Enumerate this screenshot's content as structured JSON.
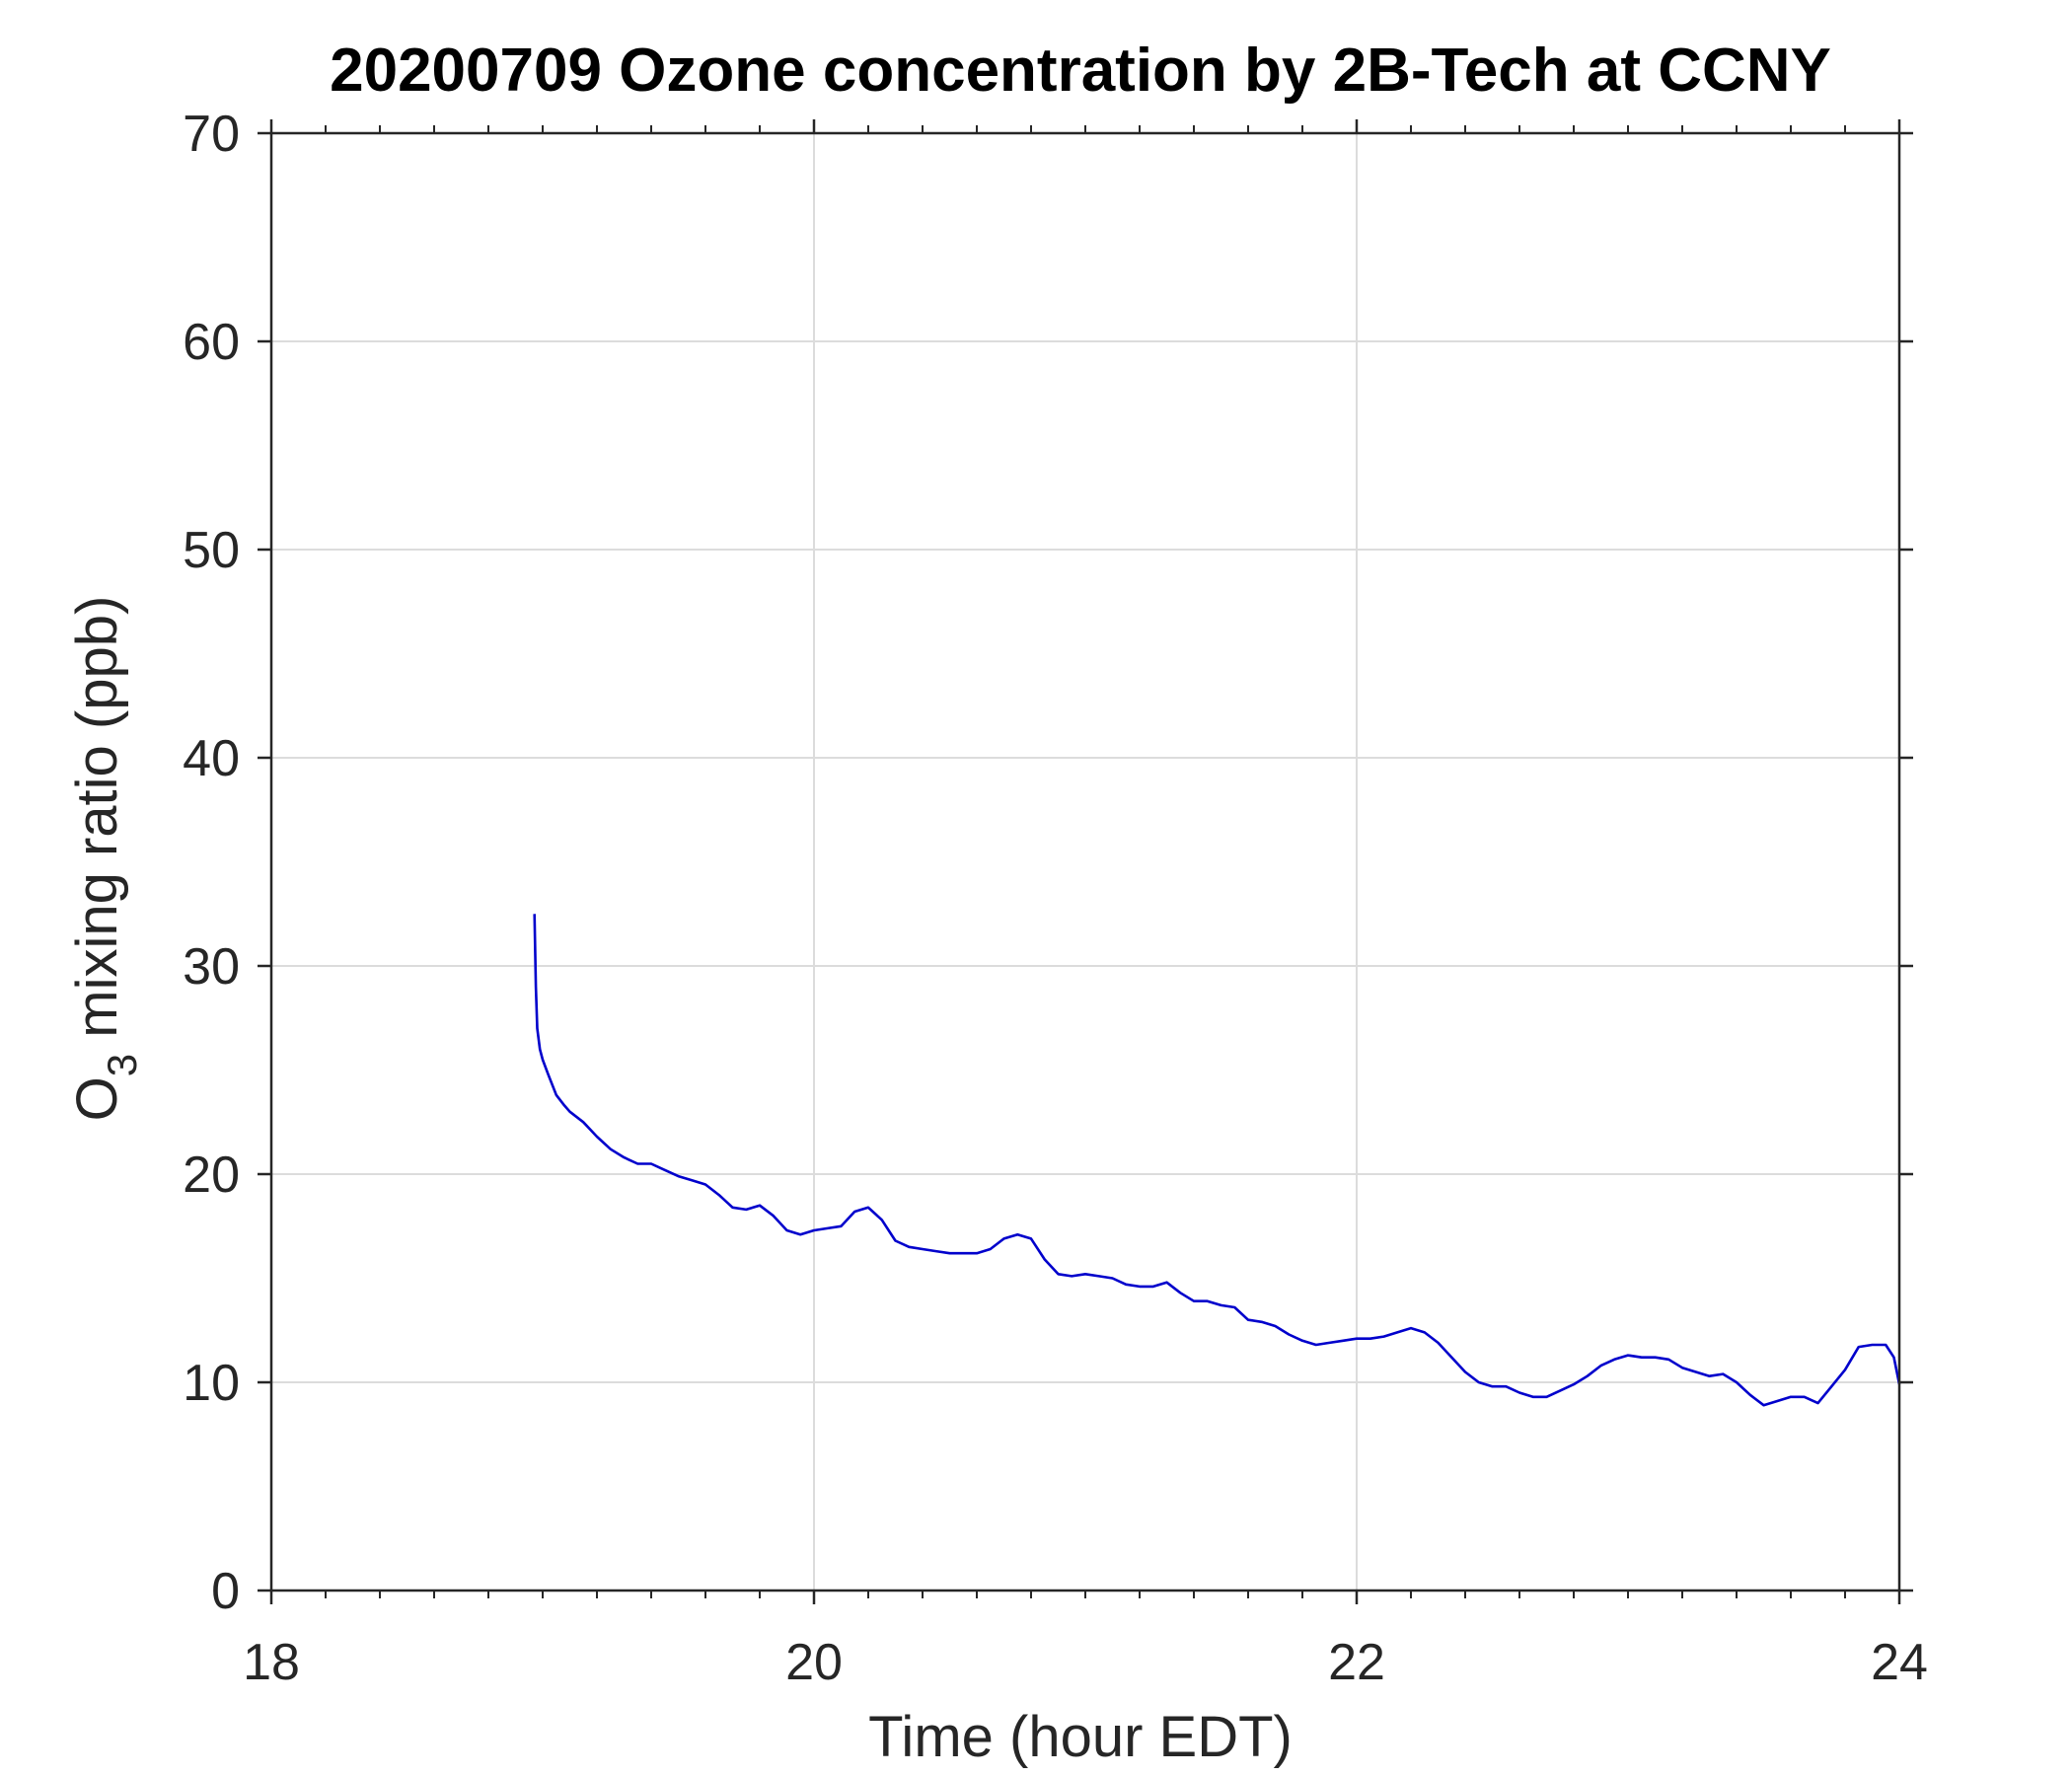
{
  "chart_data": {
    "type": "line",
    "title": "20200709 Ozone concentration by 2B-Tech at CCNY",
    "xlabel": "Time (hour EDT)",
    "ylabel_main": "O",
    "ylabel_sub": "3",
    "ylabel_rest": " mixing ratio (ppb)",
    "xlim": [
      18,
      24
    ],
    "ylim": [
      0,
      70
    ],
    "xticks": [
      18,
      20,
      22,
      24
    ],
    "xtick_labels": [
      "18",
      "20",
      "22",
      24
    ],
    "yticks": [
      0,
      10,
      20,
      30,
      40,
      50,
      60,
      70
    ],
    "ytick_labels": [
      "0",
      "10",
      "20",
      "30",
      "40",
      "50",
      "60",
      "70"
    ],
    "grid": true,
    "line_color": "#0000cc",
    "series": [
      {
        "x": [
          18.97,
          18.975,
          18.98,
          18.99,
          19.0,
          19.02,
          19.05,
          19.08,
          19.1,
          19.15,
          19.2,
          19.25,
          19.3,
          19.35,
          19.4,
          19.45,
          19.5,
          19.55,
          19.6,
          19.65,
          19.7,
          19.75,
          19.8,
          19.85,
          19.9,
          19.95,
          20.0,
          20.05,
          20.1,
          20.15,
          20.2,
          20.25,
          20.3,
          20.35,
          20.4,
          20.45,
          20.5,
          20.55,
          20.6,
          20.65,
          20.7,
          20.75,
          20.8,
          20.85,
          20.9,
          20.95,
          21.0,
          21.05,
          21.1,
          21.15,
          21.2,
          21.25,
          21.3,
          21.35,
          21.4,
          21.45,
          21.5,
          21.55,
          21.6,
          21.65,
          21.7,
          21.75,
          21.8,
          21.85,
          21.9,
          21.95,
          22.0,
          22.05,
          22.1,
          22.15,
          22.2,
          22.25,
          22.3,
          22.35,
          22.4,
          22.45,
          22.5,
          22.55,
          22.6,
          22.65,
          22.7,
          22.75,
          22.8,
          22.85,
          22.9,
          22.95,
          23.0,
          23.05,
          23.1,
          23.15,
          23.2,
          23.25,
          23.3,
          23.35,
          23.4,
          23.45,
          23.5,
          23.55,
          23.6,
          23.65,
          23.7,
          23.75,
          23.8,
          23.85,
          23.9,
          23.95,
          23.98,
          24.0
        ],
        "y": [
          32.5,
          29.0,
          27.0,
          26.0,
          25.5,
          24.8,
          23.8,
          23.3,
          23.0,
          22.5,
          21.8,
          21.2,
          20.8,
          20.5,
          20.5,
          20.2,
          19.9,
          19.7,
          19.5,
          19.0,
          18.4,
          18.3,
          18.5,
          18.0,
          17.3,
          17.1,
          17.3,
          17.4,
          17.5,
          18.2,
          18.4,
          17.8,
          16.8,
          16.5,
          16.4,
          16.3,
          16.2,
          16.2,
          16.2,
          16.4,
          16.9,
          17.1,
          16.9,
          15.9,
          15.2,
          15.1,
          15.2,
          15.1,
          15.0,
          14.7,
          14.6,
          14.6,
          14.8,
          14.3,
          13.9,
          13.9,
          13.7,
          13.6,
          13.0,
          12.9,
          12.7,
          12.3,
          12.0,
          11.8,
          11.9,
          12.0,
          12.1,
          12.1,
          12.2,
          12.4,
          12.6,
          12.4,
          11.9,
          11.2,
          10.5,
          10.0,
          9.8,
          9.8,
          9.5,
          9.3,
          9.3,
          9.6,
          9.9,
          10.3,
          10.8,
          11.1,
          11.3,
          11.2,
          11.2,
          11.1,
          10.7,
          10.5,
          10.3,
          10.4,
          10.0,
          9.4,
          8.9,
          9.1,
          9.3,
          9.3,
          9.0,
          9.8,
          10.6,
          11.7,
          11.8,
          11.8,
          11.2,
          9.9
        ]
      }
    ]
  }
}
